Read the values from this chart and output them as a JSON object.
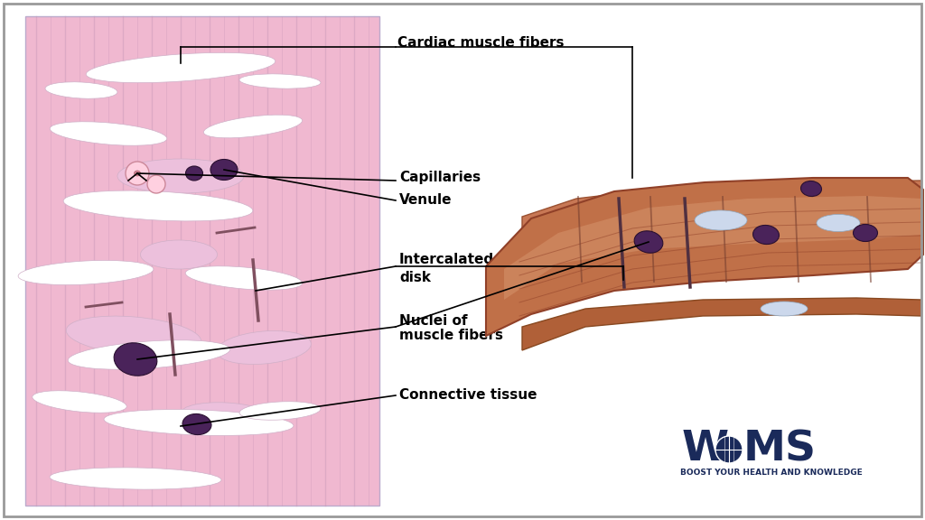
{
  "bg_color": "#ffffff",
  "fig_width": 10.24,
  "fig_height": 5.76,
  "labels": {
    "cardiac_muscle_fibers": "Cardiac muscle fibers",
    "capillaries": "Capillaries",
    "venule": "Venule",
    "intercalated_disk_1": "Intercalated",
    "intercalated_disk_2": "disk",
    "nuclei_1": "Nuclei of",
    "nuclei_2": "muscle fibers",
    "connective_tissue": "Connective tissue"
  },
  "logo_sub": "BOOST YOUR HEALTH AND KNOWLEDGE",
  "pink_bg": "#f0b8d0",
  "purple_dark": "#4a235a",
  "salmon": "#c87050",
  "tan": "#d4956a",
  "light_tan": "#e8b898",
  "navy": "#1a2a5a"
}
